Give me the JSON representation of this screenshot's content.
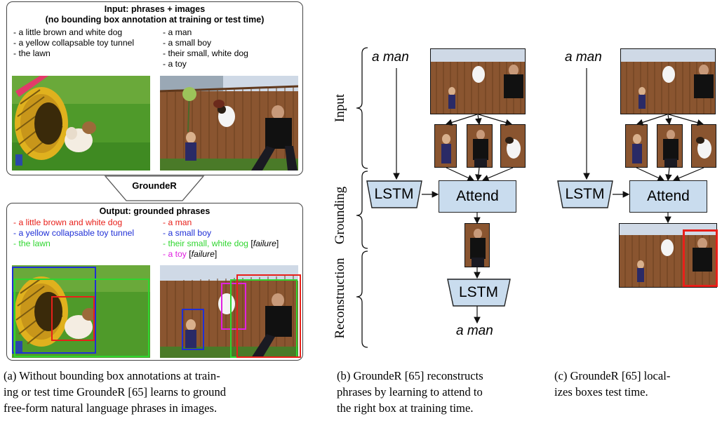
{
  "panel_a": {
    "input_box": {
      "title_line1": "Input: phrases + images",
      "title_line2": "(no bounding box annotation at training or test time)",
      "left_phrases": [
        "- a little brown and white dog",
        "- a yellow collapsable toy tunnel",
        "- the lawn"
      ],
      "right_phrases": [
        "- a man",
        "- a small boy",
        "- their small, white dog",
        "- a toy"
      ]
    },
    "arrow_label": "GroundeR",
    "output_box": {
      "title": "Output: grounded phrases",
      "left_phrases": [
        {
          "text": "- a little brown and white dog",
          "color": "#e8201a"
        },
        {
          "text": "- a yellow collapsable toy tunnel",
          "color": "#1f2fd6"
        },
        {
          "text": "- the lawn",
          "color": "#2fd62f"
        }
      ],
      "right_phrases": [
        {
          "text": "- a man",
          "color": "#e8201a",
          "note": ""
        },
        {
          "text": "- a small boy",
          "color": "#1f2fd6",
          "note": ""
        },
        {
          "text": "- their small, white dog",
          "color": "#2fd62f",
          "note": "failure"
        },
        {
          "text": "- a toy",
          "color": "#e020e0",
          "note": "failure"
        }
      ]
    },
    "caption": [
      "(a) Without bounding box annotations at train-",
      "ing or test time GroundeR [65] learns to ground",
      "free-form natural language phrases in images."
    ]
  },
  "panel_b": {
    "input_phrase": "a man",
    "output_phrase": "a man",
    "lstm_label": "LSTM",
    "attend_label": "Attend",
    "lstm2_label": "LSTM",
    "stage_labels": [
      "Input",
      "Grounding",
      "Reconstruction"
    ],
    "caption": [
      "(b) GroundeR [65] reconstructs",
      "phrases by learning to attend to",
      "the right box at training time."
    ]
  },
  "panel_c": {
    "input_phrase": "a man",
    "lstm_label": "LSTM",
    "attend_label": "Attend",
    "caption": [
      "(c) GroundeR [65] local-",
      "izes boxes test time."
    ]
  },
  "colors": {
    "box_fill": "#c9dcee",
    "red": "#e8201a",
    "blue": "#1f2fd6",
    "green": "#2fd62f",
    "magenta": "#e020e0"
  }
}
